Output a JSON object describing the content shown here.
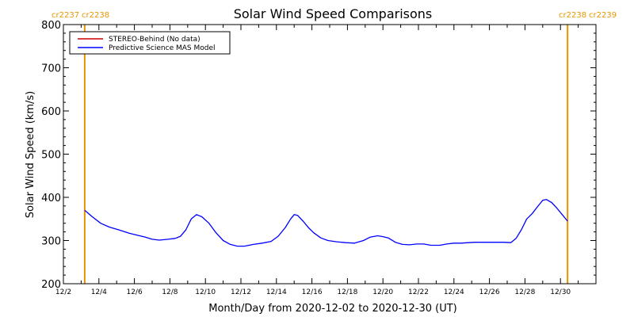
{
  "chart_data": {
    "type": "line",
    "title": "Solar Wind Speed Comparisons",
    "xlabel": "Month/Day from 2020-12-02 to 2020-12-30 (UT)",
    "ylabel": "Solar Wind Speed (km/s)",
    "xlim": [
      "2020-12-02",
      "2021-01-01"
    ],
    "ylim": [
      200,
      800
    ],
    "yticks": [
      200,
      300,
      400,
      500,
      600,
      700,
      800
    ],
    "xtick_labels": [
      "12/2",
      "12/4",
      "12/6",
      "12/8",
      "12/10",
      "12/12",
      "12/14",
      "12/16",
      "12/18",
      "12/20",
      "12/22",
      "12/24",
      "12/26",
      "12/28",
      "12/30"
    ],
    "legend_position": "top-left",
    "carrington_markers": [
      {
        "date": "2020-12-03.2",
        "left_label": "cr2237",
        "right_label": "cr2238"
      },
      {
        "date": "2020-12-30.4",
        "left_label": "cr2238",
        "right_label": "cr2239"
      }
    ],
    "marker_color": "#e69500",
    "series": [
      {
        "name": "STEREO-Behind (No data)",
        "color": "#cc0000",
        "x": [],
        "values": []
      },
      {
        "name": "Predictive Science MAS Model",
        "color": "#0000ff",
        "x": [
          3.2,
          3.6,
          4.1,
          4.6,
          5.1,
          5.7,
          6.2,
          6.6,
          7.0,
          7.4,
          7.9,
          8.3,
          8.6,
          8.9,
          9.2,
          9.5,
          9.8,
          10.2,
          10.6,
          11.0,
          11.4,
          11.8,
          12.2,
          12.7,
          13.2,
          13.7,
          14.1,
          14.5,
          14.8,
          15.0,
          15.2,
          15.5,
          15.8,
          16.1,
          16.5,
          16.9,
          17.4,
          17.9,
          18.4,
          18.9,
          19.3,
          19.7,
          20.0,
          20.3,
          20.7,
          21.1,
          21.5,
          21.9,
          22.3,
          22.7,
          23.2,
          23.6,
          24.0,
          24.4,
          24.8,
          25.2,
          25.6,
          26.0,
          26.4,
          26.8,
          27.2,
          27.5,
          27.8,
          28.1,
          28.4,
          28.7,
          29.0,
          29.2,
          29.5,
          29.8,
          30.1,
          30.4
        ],
        "values": [
          370,
          356,
          340,
          331,
          325,
          317,
          312,
          308,
          303,
          301,
          303,
          305,
          310,
          325,
          350,
          360,
          355,
          340,
          318,
          300,
          291,
          287,
          287,
          291,
          294,
          298,
          310,
          330,
          350,
          360,
          358,
          345,
          330,
          318,
          306,
          300,
          297,
          295,
          294,
          300,
          308,
          311,
          309,
          306,
          296,
          291,
          290,
          292,
          292,
          289,
          289,
          292,
          294,
          294,
          295,
          296,
          296,
          296,
          296,
          296,
          295,
          305,
          325,
          350,
          362,
          378,
          393,
          395,
          388,
          375,
          360,
          345
        ]
      }
    ]
  }
}
